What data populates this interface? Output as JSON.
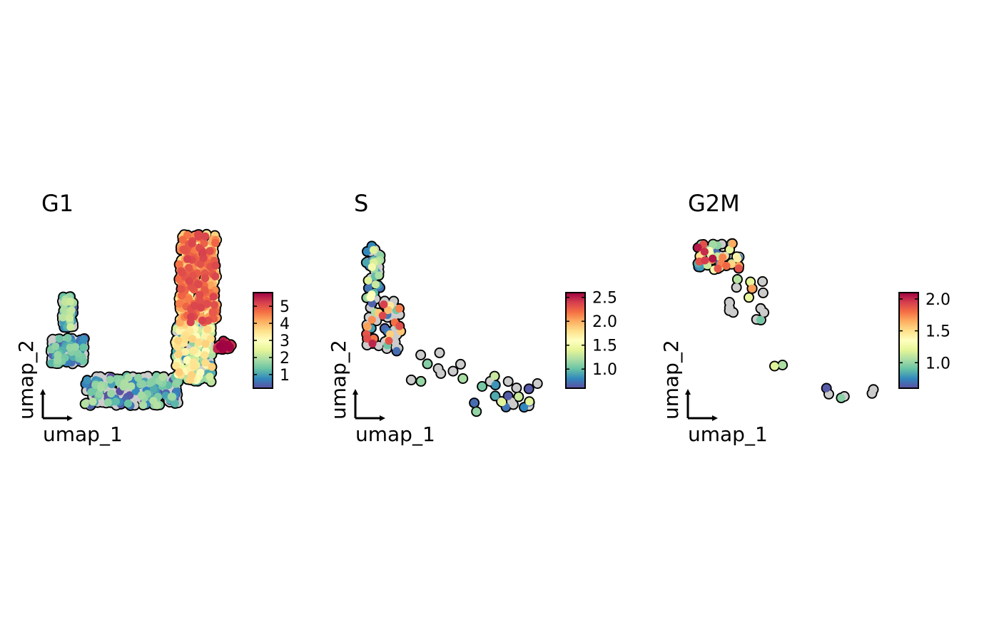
{
  "palette": [
    "#5E4FA2",
    "#3288BD",
    "#66C2A5",
    "#ABDDA4",
    "#E6F598",
    "#FFFFBF",
    "#FEE08B",
    "#FDAE61",
    "#F46D43",
    "#D53E4F",
    "#9E0142"
  ],
  "zero_color": "#CCCCCC",
  "chart_data": [
    {
      "type": "scatter",
      "title": "G1",
      "xlabel": "umap_1",
      "ylabel": "umap_2",
      "colorbar": {
        "ticks": [
          "1",
          "2",
          "3",
          "4",
          "5"
        ],
        "tick_values": [
          1,
          2,
          3,
          4,
          5
        ],
        "min": 0.2,
        "max": 5.8
      },
      "groups": [
        {
          "name": "left_arm",
          "x": [
            2.0,
            3.5
          ],
          "y": [
            7.2,
            12.5
          ],
          "n": 140,
          "low": 0.1,
          "high": 2.2,
          "zero_frac": 0.6
        },
        {
          "name": "left_cluster",
          "x": [
            0.5,
            5.0
          ],
          "y": [
            1.0,
            5.5
          ],
          "n": 180,
          "low": 0.1,
          "high": 1.8,
          "zero_frac": 0.65
        },
        {
          "name": "bottom_arc",
          "x": [
            5.0,
            17.5
          ],
          "y": [
            -6.0,
            -1.0
          ],
          "n": 300,
          "low": 0.1,
          "high": 2.0,
          "zero_frac": 0.6
        },
        {
          "name": "right_lower",
          "x": [
            17.0,
            22.0
          ],
          "y": [
            -2.0,
            8.0
          ],
          "n": 220,
          "low": 0.8,
          "high": 3.8,
          "zero_frac": 0.25
        },
        {
          "name": "right_upper",
          "x": [
            17.5,
            22.5
          ],
          "y": [
            8.0,
            23.0
          ],
          "n": 350,
          "low": 3.0,
          "high": 5.2,
          "zero_frac": 0.03
        },
        {
          "name": "right_hot_tip",
          "x": [
            22.5,
            24.5
          ],
          "y": [
            3.5,
            5.0
          ],
          "n": 25,
          "low": 5.0,
          "high": 5.8,
          "zero_frac": 0.0
        }
      ]
    },
    {
      "type": "scatter",
      "title": "S",
      "xlabel": "umap_1",
      "ylabel": "umap_2",
      "colorbar": {
        "ticks": [
          "1.0",
          "1.5",
          "2.0",
          "2.5"
        ],
        "tick_values": [
          1.0,
          1.5,
          2.0,
          2.5
        ],
        "min": 0.6,
        "max": 2.6
      },
      "groups": [
        {
          "name": "top_strand",
          "x": [
            1.0,
            3.0
          ],
          "y": [
            12.0,
            21.0
          ],
          "n": 45,
          "low": 0.6,
          "high": 1.6,
          "zero_frac": 0.3
        },
        {
          "name": "mid_cluster",
          "x": [
            1.0,
            6.0
          ],
          "y": [
            3.0,
            12.0
          ],
          "n": 60,
          "low": 0.6,
          "high": 2.5,
          "zero_frac": 0.45
        },
        {
          "name": "middle_trail",
          "x": [
            7.0,
            14.0
          ],
          "y": [
            -2.0,
            3.0
          ],
          "n": 10,
          "low": 0.8,
          "high": 1.8,
          "zero_frac": 0.3
        },
        {
          "name": "right_tail",
          "x": [
            15.0,
            24.0
          ],
          "y": [
            -7.0,
            -1.0
          ],
          "n": 22,
          "low": 0.6,
          "high": 1.4,
          "zero_frac": 0.5
        }
      ]
    },
    {
      "type": "scatter",
      "title": "G2M",
      "xlabel": "umap_1",
      "ylabel": "umap_2",
      "colorbar": {
        "ticks": [
          "1.0",
          "1.5",
          "2.0"
        ],
        "tick_values": [
          1.0,
          1.5,
          2.0
        ],
        "min": 0.6,
        "max": 2.1
      },
      "groups": [
        {
          "name": "top_cluster",
          "x": [
            1.0,
            7.0
          ],
          "y": [
            17.0,
            21.5
          ],
          "n": 55,
          "low": 0.6,
          "high": 2.1,
          "zero_frac": 0.25
        },
        {
          "name": "mid_strand",
          "x": [
            5.5,
            11.0
          ],
          "y": [
            8.0,
            16.0
          ],
          "n": 18,
          "low": 0.8,
          "high": 1.7,
          "zero_frac": 0.55
        },
        {
          "name": "lower_pair",
          "x": [
            11.5,
            13.5
          ],
          "y": [
            0.0,
            1.5
          ],
          "n": 2,
          "low": 0.9,
          "high": 1.2,
          "zero_frac": 0.0
        },
        {
          "name": "far_right",
          "x": [
            18.0,
            27.0
          ],
          "y": [
            -5.0,
            -3.0
          ],
          "n": 6,
          "low": 0.6,
          "high": 1.0,
          "zero_frac": 0.5
        }
      ]
    }
  ]
}
